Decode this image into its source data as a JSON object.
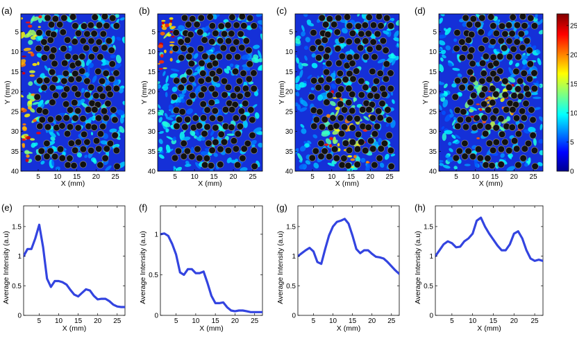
{
  "colors": {
    "line": "#3344e0",
    "scatterer": "#111111",
    "scatterer_edge": "#8a8a8a",
    "map_background": "#1530d8"
  },
  "colorbar": {
    "ticks": [
      "25",
      "20",
      "15",
      "10",
      "5",
      "0"
    ],
    "tick_values": [
      25,
      20,
      15,
      10,
      5,
      0
    ],
    "range": [
      0,
      27
    ],
    "colormap": "jet"
  },
  "chart_data": [
    {
      "type": "heatmap",
      "panel": "(a)",
      "xlabel": "X (mm)",
      "ylabel": "Y (mm)",
      "xlim": [
        0.5,
        27.5
      ],
      "ylim": [
        40,
        0.5
      ],
      "xticks": [
        "5",
        "10",
        "15",
        "20",
        "25"
      ],
      "xtick_values": [
        5,
        10,
        15,
        20,
        25
      ],
      "yticks": [
        "5",
        "10",
        "15",
        "20",
        "25",
        "30",
        "35",
        "40"
      ],
      "ytick_values": [
        5,
        10,
        15,
        20,
        25,
        30,
        35,
        40
      ],
      "hot_side": "left",
      "scatterers": "black circles"
    },
    {
      "type": "heatmap",
      "panel": "(b)",
      "xlabel": "X (mm)",
      "ylabel": "Y (mm)",
      "xlim": [
        0.5,
        27.5
      ],
      "ylim": [
        40,
        0.5
      ],
      "xticks": [
        "5",
        "10",
        "15",
        "20",
        "25"
      ],
      "xtick_values": [
        5,
        10,
        15,
        20,
        25
      ],
      "yticks": [
        "5",
        "10",
        "15",
        "20",
        "25",
        "30",
        "35",
        "40"
      ],
      "ytick_values": [
        5,
        10,
        15,
        20,
        25,
        30,
        35,
        40
      ],
      "hot_side": "top-left",
      "scatterers": "black circles"
    },
    {
      "type": "heatmap",
      "panel": "(c)",
      "xlabel": "X (mm)",
      "ylabel": "Y (mm)",
      "xlim": [
        0.5,
        27.5
      ],
      "ylim": [
        40,
        0.5
      ],
      "xticks": [
        "5",
        "10",
        "15",
        "20",
        "25"
      ],
      "xtick_values": [
        5,
        10,
        15,
        20,
        25
      ],
      "yticks": [
        "5",
        "10",
        "15",
        "20",
        "25",
        "30",
        "35",
        "40"
      ],
      "ytick_values": [
        5,
        10,
        15,
        20,
        25,
        30,
        35,
        40
      ],
      "hot_side": "center",
      "scatterers": "black circles"
    },
    {
      "type": "heatmap",
      "panel": "(d)",
      "xlabel": "X (mm)",
      "ylabel": "Y (mm)",
      "xlim": [
        0.5,
        27.5
      ],
      "ylim": [
        40,
        0.5
      ],
      "xticks": [
        "5",
        "10",
        "15",
        "20",
        "25"
      ],
      "xtick_values": [
        5,
        10,
        15,
        20,
        25
      ],
      "yticks": [
        "5",
        "10",
        "15",
        "20",
        "25",
        "30",
        "35",
        "40"
      ],
      "ytick_values": [
        5,
        10,
        15,
        20,
        25,
        30,
        35,
        40
      ],
      "hot_side": "center",
      "scatterers": "black circles"
    },
    {
      "type": "line",
      "panel": "(e)",
      "xlabel": "X (mm)",
      "ylabel": "Average Intensity (a.u)",
      "xlim": [
        1,
        27
      ],
      "ylim": [
        0,
        1.85
      ],
      "xticks": [
        "5",
        "10",
        "15",
        "20",
        "25"
      ],
      "xtick_values": [
        5,
        10,
        15,
        20,
        25
      ],
      "yticks": [
        "0",
        "0.5",
        "1",
        "1.5"
      ],
      "ytick_values": [
        0,
        0.5,
        1,
        1.5
      ],
      "x": [
        1,
        2,
        3,
        4,
        5,
        6,
        7,
        8,
        9,
        10,
        11,
        12,
        13,
        14,
        15,
        16,
        17,
        18,
        19,
        20,
        21,
        22,
        23,
        24,
        25,
        26,
        27
      ],
      "y": [
        1.0,
        1.12,
        1.12,
        1.3,
        1.53,
        1.15,
        0.62,
        0.48,
        0.58,
        0.58,
        0.56,
        0.52,
        0.43,
        0.35,
        0.32,
        0.38,
        0.44,
        0.42,
        0.33,
        0.27,
        0.28,
        0.28,
        0.24,
        0.18,
        0.15,
        0.14,
        0.14
      ]
    },
    {
      "type": "line",
      "panel": "(f)",
      "xlabel": "X (mm)",
      "ylabel": "Average Intensity (a.u)",
      "xlim": [
        1,
        27
      ],
      "ylim": [
        0,
        1.35
      ],
      "xticks": [
        "5",
        "10",
        "15",
        "20",
        "25"
      ],
      "xtick_values": [
        5,
        10,
        15,
        20,
        25
      ],
      "yticks": [
        "0",
        "0.5",
        "1"
      ],
      "ytick_values": [
        0,
        0.5,
        1
      ],
      "x": [
        1,
        2,
        3,
        4,
        5,
        6,
        7,
        8,
        9,
        10,
        11,
        12,
        13,
        14,
        15,
        16,
        17,
        18,
        19,
        20,
        21,
        22,
        23,
        24,
        25,
        26,
        27
      ],
      "y": [
        1.0,
        1.01,
        0.98,
        0.88,
        0.75,
        0.53,
        0.5,
        0.57,
        0.57,
        0.52,
        0.52,
        0.54,
        0.4,
        0.24,
        0.15,
        0.15,
        0.16,
        0.1,
        0.06,
        0.05,
        0.06,
        0.06,
        0.05,
        0.04,
        0.04,
        0.04,
        0.04
      ]
    },
    {
      "type": "line",
      "panel": "(g)",
      "xlabel": "X (mm)",
      "ylabel": "Average Intensity (a.u)",
      "xlim": [
        1,
        27
      ],
      "ylim": [
        0,
        1.85
      ],
      "xticks": [
        "5",
        "10",
        "15",
        "20",
        "25"
      ],
      "xtick_values": [
        5,
        10,
        15,
        20,
        25
      ],
      "yticks": [
        "0",
        "0.5",
        "1",
        "1.5"
      ],
      "ytick_values": [
        0,
        0.5,
        1,
        1.5
      ],
      "x": [
        1,
        2,
        3,
        4,
        5,
        6,
        7,
        8,
        9,
        10,
        11,
        12,
        13,
        14,
        15,
        16,
        17,
        18,
        19,
        20,
        21,
        22,
        23,
        24,
        25,
        26,
        27
      ],
      "y": [
        1.0,
        1.05,
        1.1,
        1.14,
        1.08,
        0.9,
        0.87,
        1.12,
        1.35,
        1.5,
        1.58,
        1.6,
        1.63,
        1.55,
        1.35,
        1.12,
        1.05,
        1.1,
        1.1,
        1.04,
        0.99,
        0.98,
        0.96,
        0.9,
        0.83,
        0.76,
        0.7
      ]
    },
    {
      "type": "line",
      "panel": "(h)",
      "xlabel": "X (mm)",
      "ylabel": "Average Intensity (a.u)",
      "xlim": [
        1,
        27
      ],
      "ylim": [
        0,
        1.85
      ],
      "xticks": [
        "5",
        "10",
        "15",
        "20",
        "25"
      ],
      "xtick_values": [
        5,
        10,
        15,
        20,
        25
      ],
      "yticks": [
        "0",
        "0.5",
        "1",
        "1.5"
      ],
      "ytick_values": [
        0,
        0.5,
        1,
        1.5
      ],
      "x": [
        1,
        2,
        3,
        4,
        5,
        6,
        7,
        8,
        9,
        10,
        11,
        12,
        13,
        14,
        15,
        16,
        17,
        18,
        19,
        20,
        21,
        22,
        23,
        24,
        25,
        26,
        27
      ],
      "y": [
        1.0,
        1.1,
        1.2,
        1.25,
        1.22,
        1.15,
        1.16,
        1.25,
        1.3,
        1.38,
        1.6,
        1.65,
        1.5,
        1.38,
        1.28,
        1.18,
        1.1,
        1.1,
        1.2,
        1.38,
        1.42,
        1.3,
        1.1,
        0.96,
        0.92,
        0.94,
        0.92
      ]
    }
  ]
}
